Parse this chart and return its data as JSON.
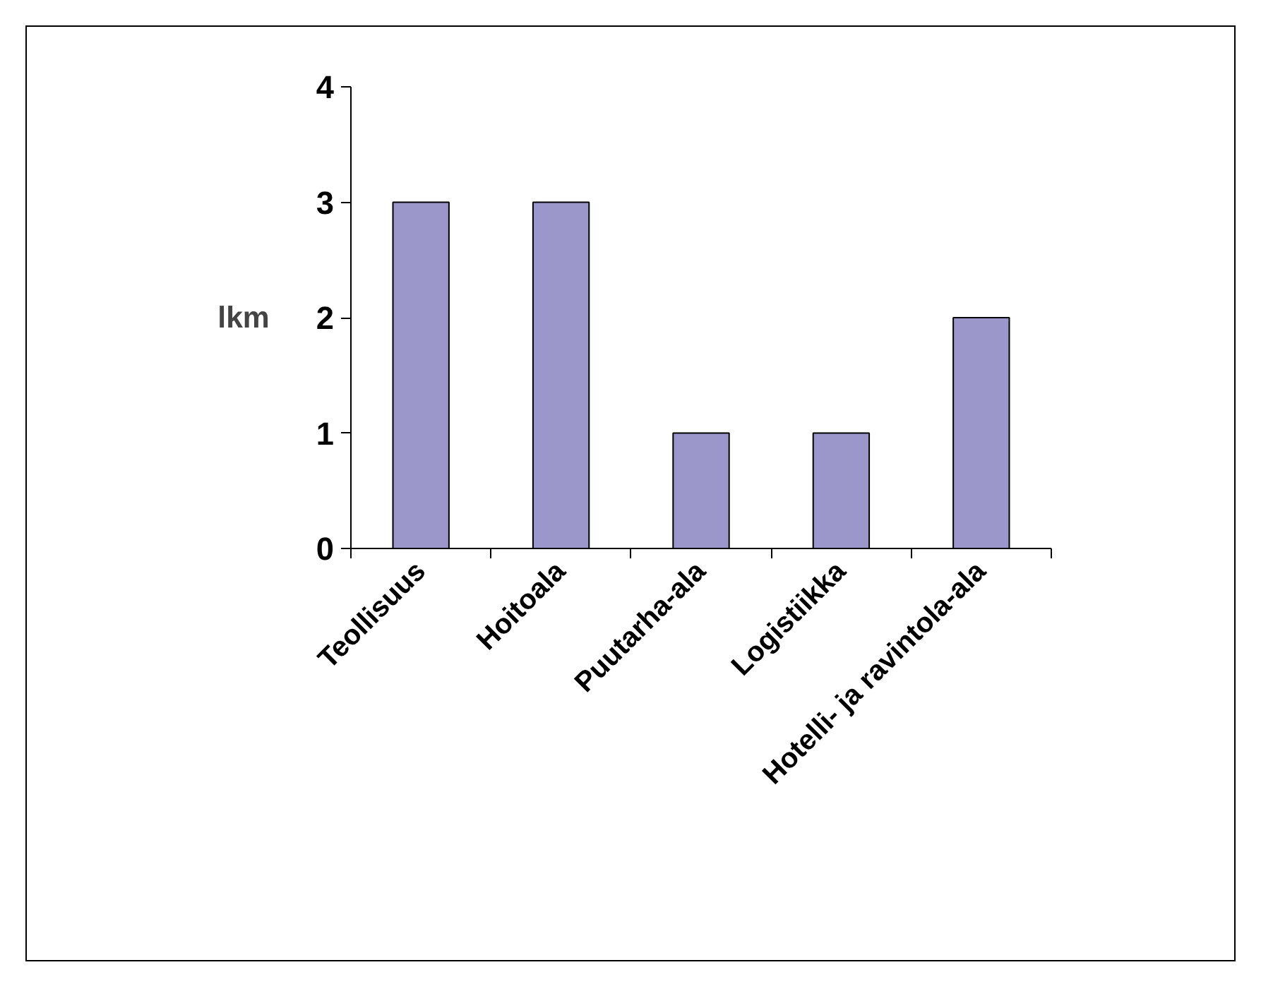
{
  "chart_data": {
    "type": "bar",
    "ylabel": "lkm",
    "categories": [
      "Teollisuus",
      "Hoitoala",
      "Puutarha-ala",
      "Logistiikka",
      "Hotelli- ja ravintola-ala"
    ],
    "values": [
      3,
      3,
      1,
      1,
      2
    ],
    "color": "#9b97cb",
    "ylim": [
      0,
      4
    ],
    "yticks": [
      0,
      1,
      2,
      3,
      4
    ],
    "grid": false
  }
}
